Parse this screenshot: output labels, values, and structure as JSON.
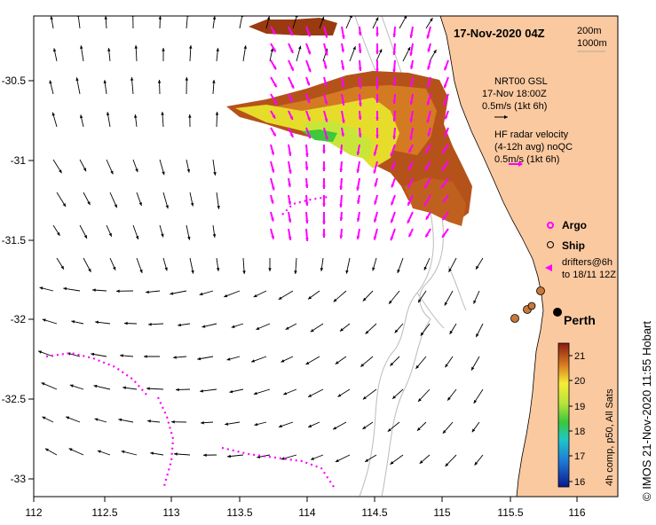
{
  "map": {
    "date_title": "17-Nov-2020 04Z",
    "depth_legend": [
      "200m",
      "1000m"
    ],
    "lon_ticks": [
      "112",
      "112.5",
      "113",
      "113.5",
      "114",
      "114.5",
      "115",
      "115.5",
      "116"
    ],
    "lat_ticks": [
      "-30.5",
      "-31",
      "-31.5",
      "-32",
      "-32.5",
      "-33"
    ],
    "model_legend": [
      "NRT00 GSL",
      "17-Nov 18:00Z",
      "0.5m/s (1kt 6h)"
    ],
    "radar_legend": [
      "HF radar velocity",
      "(4-12h avg) noQC",
      "0.5m/s (1kt 6h)"
    ],
    "marker_legend": {
      "argo": "Argo",
      "ship": "Ship",
      "drifters": [
        "drifters@6h",
        "to 18/11 12Z"
      ]
    },
    "place_label": "Perth",
    "colorbar": {
      "ticks": [
        "21",
        "20",
        "19",
        "18",
        "17",
        "16"
      ],
      "label": "4h comp, p50, All Sats"
    },
    "credit": "© IMOS 21-Nov-2020 11:55 Hobart",
    "colors": {
      "land": "#fbc9a0",
      "model_arrow": "#000000",
      "radar_arrow": "#ff00ff",
      "drifter": "#ff00ff",
      "ship": "#c8783c",
      "bathymetry": "#bbbbbb"
    }
  }
}
